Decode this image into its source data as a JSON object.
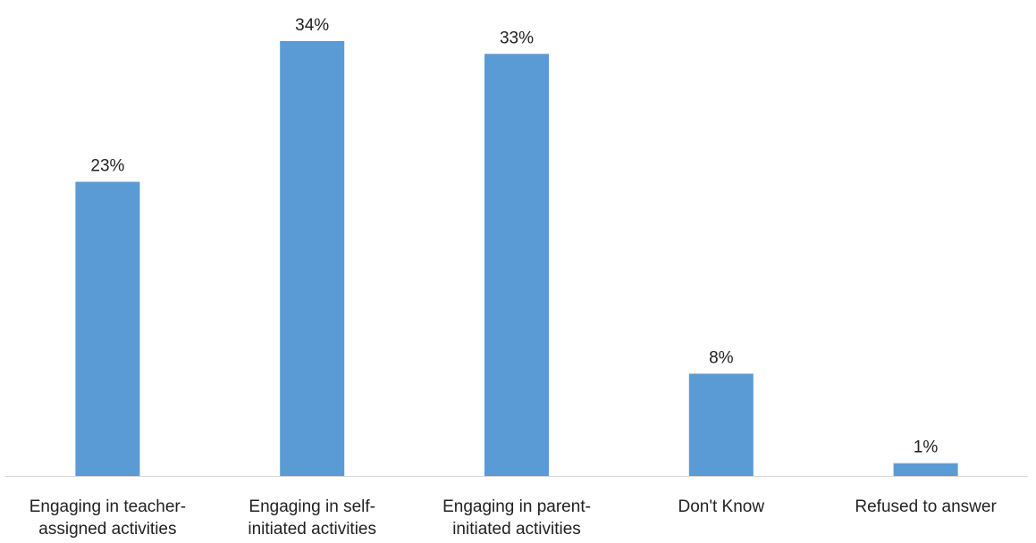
{
  "chart_data": {
    "type": "bar",
    "categories": [
      [
        "Engaging in teacher-",
        "assigned activities"
      ],
      [
        "Engaging in self-",
        "initiated activities"
      ],
      [
        "Engaging in parent-",
        "initiated activities"
      ],
      [
        "Don't Know"
      ],
      [
        "Refused to answer"
      ]
    ],
    "values": [
      23,
      34,
      33,
      8,
      1
    ],
    "data_labels": [
      "23%",
      "34%",
      "33%",
      "8%",
      "1%"
    ],
    "ylim": [
      0,
      34
    ],
    "grid": false,
    "legend": "none",
    "colors": {
      "bar": "#5b9bd5",
      "axis": "#d9d9d9",
      "text": "#222222"
    }
  }
}
